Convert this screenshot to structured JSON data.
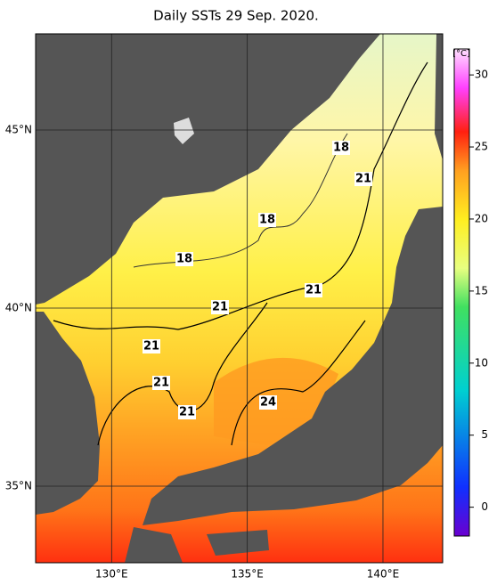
{
  "title": "Daily SSTs 29 Sep. 2020.",
  "map": {
    "lonlim": [
      127.2,
      142.2
    ],
    "latlim": [
      32.85,
      47.7
    ],
    "lat_ticks": [
      {
        "value": 45,
        "label": "45°N"
      },
      {
        "value": 40,
        "label": "40°N"
      },
      {
        "value": 35,
        "label": "35°N"
      }
    ],
    "lon_ticks": [
      {
        "value": 130,
        "label": "130°E"
      },
      {
        "value": 135,
        "label": "135°E"
      },
      {
        "value": 140,
        "label": "140°E"
      }
    ],
    "contour_labels": [
      "18",
      "21",
      "18",
      "18",
      "21",
      "21",
      "21",
      "21",
      "24",
      "21"
    ]
  },
  "colorbar": {
    "unit": "[°C]",
    "lim": [
      -2,
      31.8
    ],
    "ticks": [
      0,
      5,
      10,
      15,
      20,
      25,
      30
    ]
  }
}
